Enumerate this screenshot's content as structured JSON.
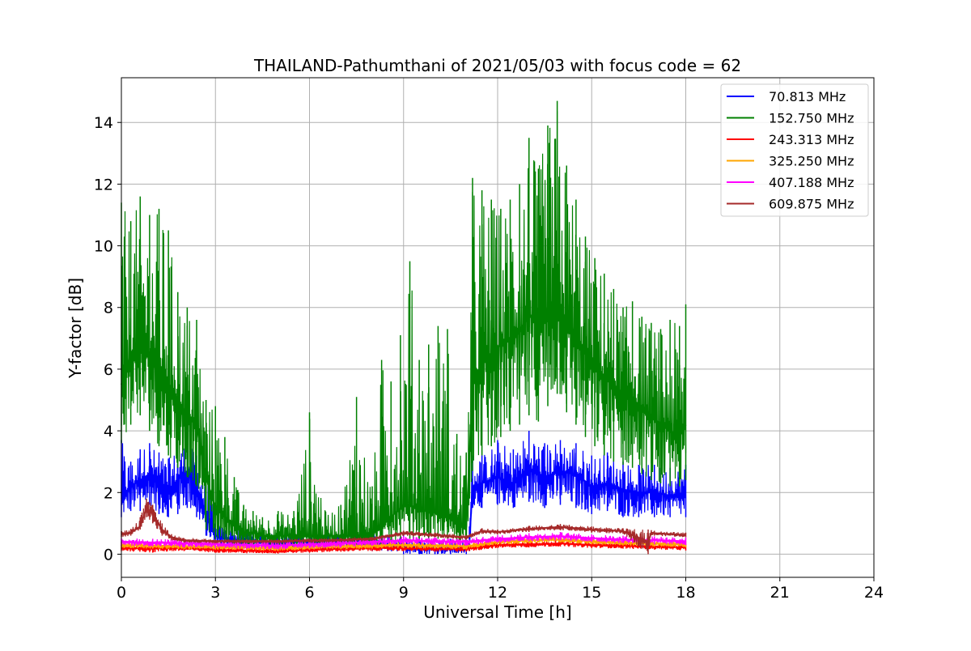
{
  "chart_data": {
    "type": "line",
    "title": "THAILAND-Pathumthani of 2021/05/03 with focus code = 62",
    "xlabel": "Universal Time [h]",
    "ylabel": "Y-factor [dB]",
    "xlim": [
      0,
      24
    ],
    "ylim": [
      -0.75,
      15.45
    ],
    "xticks": [
      0,
      3,
      6,
      9,
      12,
      15,
      18,
      21,
      24
    ],
    "yticks": [
      0,
      2,
      4,
      6,
      8,
      10,
      12,
      14
    ],
    "grid": true,
    "legend_position": "top-right",
    "series": [
      {
        "name": " 70.813 MHz",
        "color": "#0000ff",
        "x": [
          0,
          0.3,
          0.6,
          0.9,
          1.2,
          1.5,
          1.8,
          2.1,
          2.4,
          2.7,
          3.0,
          3.5,
          4.0,
          4.5,
          5.0,
          5.5,
          6.0,
          6.5,
          7.0,
          7.5,
          8.0,
          8.5,
          9.0,
          9.5,
          10.0,
          10.5,
          11.0,
          11.1,
          11.2,
          11.5,
          12.0,
          12.5,
          13.0,
          13.5,
          14.0,
          14.5,
          15.0,
          15.5,
          16.0,
          16.5,
          17.0,
          17.5,
          18.0
        ],
        "y": [
          1.8,
          2.2,
          2.4,
          2.6,
          2.3,
          2.1,
          2.4,
          2.7,
          2.2,
          1.2,
          0.6,
          0.5,
          0.4,
          0.4,
          0.4,
          0.4,
          0.4,
          0.4,
          0.4,
          0.4,
          0.4,
          0.3,
          0.3,
          0.2,
          0.2,
          0.2,
          0.2,
          0.4,
          2.2,
          2.3,
          2.5,
          2.3,
          2.8,
          2.5,
          2.7,
          2.6,
          2.2,
          2.3,
          2.1,
          2.0,
          2.0,
          1.9,
          2.0
        ],
        "env": [
          [
            1.2,
            3.7
          ],
          [
            1.4,
            3.0
          ],
          [
            1.4,
            3.4
          ],
          [
            1.6,
            3.6
          ],
          [
            1.3,
            3.3
          ],
          [
            1.2,
            3.1
          ],
          [
            1.3,
            3.5
          ],
          [
            1.5,
            3.7
          ],
          [
            1.2,
            3.2
          ],
          [
            0.6,
            2.8
          ],
          [
            0.3,
            1.0
          ],
          [
            0.2,
            0.8
          ],
          [
            0.2,
            0.8
          ],
          [
            0.2,
            0.7
          ],
          [
            0.2,
            0.7
          ],
          [
            0.2,
            0.7
          ],
          [
            0.2,
            0.8
          ],
          [
            0.2,
            0.7
          ],
          [
            0.2,
            0.7
          ],
          [
            0.2,
            0.7
          ],
          [
            0.1,
            0.7
          ],
          [
            0.1,
            0.6
          ],
          [
            0.0,
            0.6
          ],
          [
            0.0,
            0.5
          ],
          [
            0.0,
            0.5
          ],
          [
            0.0,
            0.5
          ],
          [
            0.0,
            0.5
          ],
          [
            0.1,
            0.9
          ],
          [
            1.5,
            3.2
          ],
          [
            1.5,
            3.2
          ],
          [
            1.6,
            3.7
          ],
          [
            1.5,
            3.4
          ],
          [
            1.7,
            4.0
          ],
          [
            1.5,
            3.6
          ],
          [
            1.6,
            3.7
          ],
          [
            1.5,
            3.6
          ],
          [
            1.3,
            3.2
          ],
          [
            1.4,
            3.3
          ],
          [
            1.2,
            3.0
          ],
          [
            1.2,
            2.9
          ],
          [
            1.2,
            2.9
          ],
          [
            1.2,
            2.8
          ],
          [
            1.2,
            2.9
          ]
        ]
      },
      {
        "name": "152.750 MHz",
        "color": "#008000",
        "x": [
          0,
          0.3,
          0.6,
          0.9,
          1.2,
          1.5,
          1.8,
          2.1,
          2.4,
          2.7,
          3.0,
          3.3,
          3.6,
          3.9,
          4.2,
          4.5,
          5.0,
          5.5,
          6.0,
          6.5,
          7.0,
          7.5,
          8.0,
          8.3,
          8.6,
          8.9,
          9.2,
          9.5,
          9.8,
          10.1,
          10.4,
          10.7,
          11.0,
          11.2,
          11.5,
          11.8,
          12.1,
          12.4,
          12.7,
          13.0,
          13.3,
          13.6,
          13.9,
          14.2,
          14.5,
          14.8,
          15.1,
          15.4,
          15.7,
          16.0,
          16.3,
          16.6,
          16.9,
          17.2,
          17.5,
          17.8,
          18.0
        ],
        "y": [
          5.5,
          6.5,
          7.0,
          6.5,
          6.0,
          5.5,
          5.0,
          4.5,
          4.2,
          2.5,
          1.5,
          1.2,
          1.0,
          0.7,
          0.7,
          0.6,
          0.6,
          0.6,
          0.6,
          0.6,
          0.6,
          0.6,
          0.7,
          0.9,
          1.2,
          1.5,
          1.6,
          1.4,
          1.4,
          1.3,
          1.2,
          1.0,
          0.9,
          5.5,
          6.2,
          6.5,
          6.8,
          7.0,
          7.2,
          7.8,
          7.5,
          8.0,
          8.3,
          7.5,
          7.2,
          6.5,
          6.0,
          5.8,
          5.5,
          5.2,
          5.0,
          4.8,
          4.5,
          4.2,
          4.0,
          3.8,
          4.2
        ],
        "env": [
          [
            3.6,
            11.4
          ],
          [
            4.2,
            10.8
          ],
          [
            4.5,
            11.6
          ],
          [
            4.0,
            11.0
          ],
          [
            3.5,
            11.2
          ],
          [
            3.2,
            10.5
          ],
          [
            2.8,
            8.5
          ],
          [
            2.5,
            8.0
          ],
          [
            2.2,
            7.6
          ],
          [
            0.8,
            5.0
          ],
          [
            0.5,
            4.8
          ],
          [
            0.4,
            3.8
          ],
          [
            0.3,
            2.5
          ],
          [
            0.2,
            1.6
          ],
          [
            0.2,
            1.4
          ],
          [
            0.2,
            1.2
          ],
          [
            0.2,
            1.4
          ],
          [
            0.2,
            1.4
          ],
          [
            0.2,
            4.6
          ],
          [
            0.2,
            1.4
          ],
          [
            0.2,
            1.6
          ],
          [
            0.2,
            5.1
          ],
          [
            0.3,
            2.2
          ],
          [
            0.3,
            6.3
          ],
          [
            0.4,
            5.6
          ],
          [
            0.5,
            7.1
          ],
          [
            0.5,
            9.5
          ],
          [
            0.5,
            6.3
          ],
          [
            0.5,
            6.8
          ],
          [
            0.5,
            7.4
          ],
          [
            0.5,
            7.3
          ],
          [
            0.4,
            3.9
          ],
          [
            0.4,
            3.3
          ],
          [
            2.7,
            12.2
          ],
          [
            3.2,
            11.8
          ],
          [
            3.5,
            11.5
          ],
          [
            3.8,
            11.2
          ],
          [
            4.0,
            11.5
          ],
          [
            4.2,
            12.0
          ],
          [
            4.5,
            13.5
          ],
          [
            4.3,
            12.5
          ],
          [
            4.8,
            13.9
          ],
          [
            5.2,
            14.7
          ],
          [
            4.6,
            12.6
          ],
          [
            4.2,
            11.5
          ],
          [
            3.8,
            10.3
          ],
          [
            3.5,
            9.6
          ],
          [
            3.2,
            9.1
          ],
          [
            3.0,
            8.6
          ],
          [
            2.9,
            8.0
          ],
          [
            2.8,
            8.2
          ],
          [
            2.6,
            7.7
          ],
          [
            2.4,
            7.5
          ],
          [
            2.3,
            7.3
          ],
          [
            2.2,
            7.6
          ],
          [
            2.2,
            7.4
          ],
          [
            2.4,
            8.1
          ]
        ]
      },
      {
        "name": "243.313 MHz",
        "color": "#ff0000",
        "x": [
          0,
          1,
          2,
          3,
          4,
          5,
          6,
          7,
          8,
          9,
          10,
          11,
          12,
          13,
          14,
          15,
          16,
          17,
          18
        ],
        "y": [
          0.2,
          0.2,
          0.2,
          0.15,
          0.12,
          0.1,
          0.15,
          0.18,
          0.2,
          0.2,
          0.18,
          0.18,
          0.3,
          0.32,
          0.35,
          0.3,
          0.28,
          0.25,
          0.22
        ],
        "env": [
          [
            0.1,
            0.3
          ],
          [
            0.05,
            0.3
          ],
          [
            0.1,
            0.3
          ],
          [
            0.05,
            0.25
          ],
          [
            0.03,
            0.22
          ],
          [
            0.02,
            0.2
          ],
          [
            0.05,
            0.25
          ],
          [
            0.08,
            0.28
          ],
          [
            0.1,
            0.3
          ],
          [
            0.1,
            0.3
          ],
          [
            0.08,
            0.28
          ],
          [
            0.08,
            0.28
          ],
          [
            0.2,
            0.4
          ],
          [
            0.22,
            0.42
          ],
          [
            0.25,
            0.45
          ],
          [
            0.2,
            0.4
          ],
          [
            0.18,
            0.38
          ],
          [
            0.15,
            0.35
          ],
          [
            0.12,
            0.32
          ]
        ]
      },
      {
        "name": "325.250 MHz",
        "color": "#ffa500",
        "x": [
          0,
          1,
          2,
          3,
          4,
          5,
          6,
          7,
          8,
          9,
          10,
          11,
          12,
          13,
          14,
          15,
          16,
          17,
          18
        ],
        "y": [
          0.3,
          0.28,
          0.26,
          0.25,
          0.22,
          0.2,
          0.24,
          0.26,
          0.28,
          0.3,
          0.28,
          0.26,
          0.4,
          0.45,
          0.48,
          0.42,
          0.38,
          0.35,
          0.32
        ],
        "env": [
          [
            0.2,
            0.4
          ],
          [
            0.18,
            0.38
          ],
          [
            0.16,
            0.36
          ],
          [
            0.15,
            0.35
          ],
          [
            0.12,
            0.32
          ],
          [
            0.1,
            0.3
          ],
          [
            0.14,
            0.34
          ],
          [
            0.16,
            0.36
          ],
          [
            0.18,
            0.38
          ],
          [
            0.2,
            0.4
          ],
          [
            0.18,
            0.38
          ],
          [
            0.16,
            0.36
          ],
          [
            0.3,
            0.5
          ],
          [
            0.35,
            0.55
          ],
          [
            0.38,
            0.58
          ],
          [
            0.32,
            0.52
          ],
          [
            0.28,
            0.48
          ],
          [
            0.25,
            0.45
          ],
          [
            0.22,
            0.42
          ]
        ]
      },
      {
        "name": "407.188 MHz",
        "color": "#ff00ff",
        "x": [
          0,
          1,
          2,
          3,
          4,
          5,
          6,
          7,
          8,
          9,
          10,
          11,
          12,
          13,
          14,
          15,
          16,
          17,
          18
        ],
        "y": [
          0.4,
          0.38,
          0.35,
          0.33,
          0.3,
          0.28,
          0.32,
          0.35,
          0.4,
          0.45,
          0.42,
          0.4,
          0.5,
          0.55,
          0.58,
          0.52,
          0.48,
          0.45,
          0.42
        ],
        "env": [
          [
            0.28,
            0.52
          ],
          [
            0.25,
            0.5
          ],
          [
            0.22,
            0.48
          ],
          [
            0.2,
            0.46
          ],
          [
            0.18,
            0.42
          ],
          [
            0.16,
            0.4
          ],
          [
            0.2,
            0.44
          ],
          [
            0.22,
            0.48
          ],
          [
            0.28,
            0.52
          ],
          [
            0.32,
            0.58
          ],
          [
            0.3,
            0.54
          ],
          [
            0.28,
            0.52
          ],
          [
            0.38,
            0.62
          ],
          [
            0.42,
            0.68
          ],
          [
            0.45,
            0.72
          ],
          [
            0.4,
            0.64
          ],
          [
            0.36,
            0.6
          ],
          [
            0.32,
            0.58
          ],
          [
            0.3,
            0.54
          ]
        ]
      },
      {
        "name": "609.875 MHz",
        "color": "#a52a2a",
        "x": [
          0,
          0.3,
          0.6,
          0.8,
          1.0,
          1.3,
          1.6,
          2.0,
          3.0,
          4.0,
          5.0,
          6.0,
          7.0,
          8.0,
          9.0,
          10.0,
          11.0,
          11.5,
          12.0,
          13.0,
          14.0,
          15.0,
          16.0,
          16.8,
          16.9,
          17.0,
          18.0
        ],
        "y": [
          0.65,
          0.7,
          0.9,
          1.5,
          1.3,
          0.8,
          0.55,
          0.45,
          0.42,
          0.42,
          0.42,
          0.44,
          0.46,
          0.5,
          0.68,
          0.62,
          0.55,
          0.75,
          0.72,
          0.82,
          0.88,
          0.8,
          0.75,
          0.4,
          0.7,
          0.68,
          0.62
        ],
        "env": [
          [
            0.55,
            0.75
          ],
          [
            0.6,
            0.82
          ],
          [
            0.8,
            1.2
          ],
          [
            1.2,
            1.8
          ],
          [
            1.0,
            1.6
          ],
          [
            0.6,
            1.0
          ],
          [
            0.45,
            0.65
          ],
          [
            0.38,
            0.52
          ],
          [
            0.36,
            0.48
          ],
          [
            0.36,
            0.48
          ],
          [
            0.36,
            0.48
          ],
          [
            0.38,
            0.5
          ],
          [
            0.4,
            0.52
          ],
          [
            0.44,
            0.56
          ],
          [
            0.6,
            0.76
          ],
          [
            0.55,
            0.7
          ],
          [
            0.48,
            0.62
          ],
          [
            0.66,
            0.84
          ],
          [
            0.64,
            0.8
          ],
          [
            0.72,
            0.92
          ],
          [
            0.78,
            0.98
          ],
          [
            0.7,
            0.9
          ],
          [
            0.66,
            0.84
          ],
          [
            0.0,
            0.8
          ],
          [
            0.62,
            0.78
          ],
          [
            0.6,
            0.76
          ],
          [
            0.55,
            0.7
          ]
        ]
      }
    ]
  }
}
